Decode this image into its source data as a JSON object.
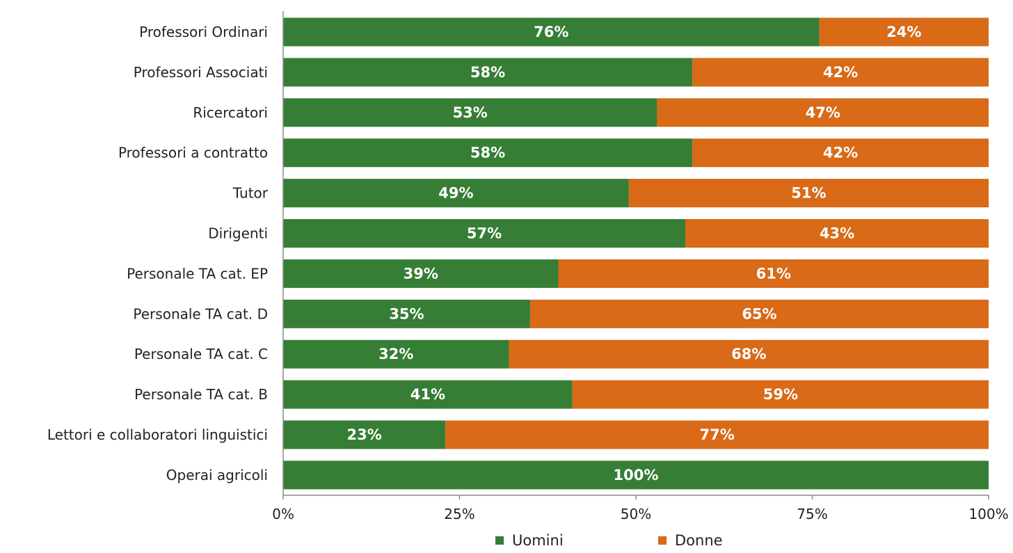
{
  "chart_data": {
    "type": "bar",
    "orientation": "horizontal",
    "stacked": "percent",
    "categories": [
      "Professori Ordinari",
      "Professori Associati",
      "Ricercatori",
      "Professori a contratto",
      "Tutor",
      "Dirigenti",
      "Personale TA cat. EP",
      "Personale TA cat. D",
      "Personale TA cat. C",
      "Personale TA cat. B",
      "Lettori e collaboratori linguistici",
      "Operai agricoli"
    ],
    "series": [
      {
        "name": "Uomini",
        "color": "#367E35",
        "values": [
          76,
          58,
          53,
          58,
          49,
          57,
          39,
          35,
          32,
          41,
          23,
          100
        ],
        "labels": [
          "76%",
          "58%",
          "53%",
          "58%",
          "49%",
          "57%",
          "39%",
          "35%",
          "32%",
          "41%",
          "23%",
          "100%"
        ]
      },
      {
        "name": "Donne",
        "color": "#D86A18",
        "values": [
          24,
          42,
          47,
          42,
          51,
          43,
          61,
          65,
          68,
          59,
          77,
          0
        ],
        "labels": [
          "24%",
          "42%",
          "47%",
          "42%",
          "51%",
          "43%",
          "61%",
          "65%",
          "68%",
          "59%",
          "77%",
          ""
        ]
      }
    ],
    "xlim": [
      0,
      100
    ],
    "xticks": [
      0,
      25,
      50,
      75,
      100
    ],
    "xtick_labels": [
      "0%",
      "25%",
      "50%",
      "75%",
      "100%"
    ],
    "grid": false,
    "legend_position": "bottom"
  }
}
